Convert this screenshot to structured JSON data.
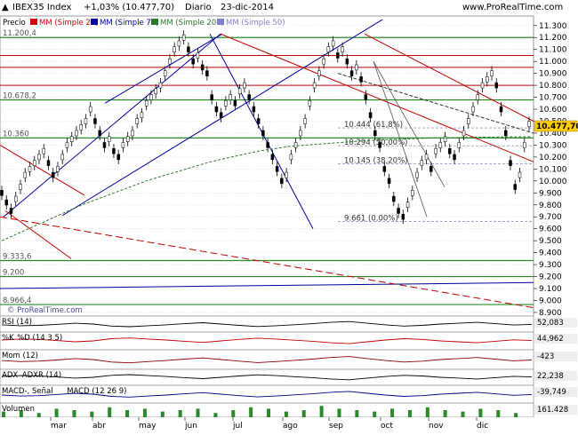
{
  "header": {
    "symbol": "IBEX35 Index",
    "change": "+1,03% (10.477,70)",
    "period": "Diario",
    "date": "23-dic-2014",
    "site": "www.ProRealTime.com"
  },
  "legend": {
    "price": "Precio",
    "sma20": "MM (Simple 20)",
    "sma70": "MM (Simple 70)",
    "sma200": "MM (Simple 200)",
    "sma50": "MM (Simple 50)"
  },
  "watermark": "© ProRealTime.com",
  "price_tag": "10.477,70",
  "indicators": {
    "rsi": {
      "label": "RSI (14)",
      "value": "52,083"
    },
    "stoch": {
      "label1": "%K",
      "label2": "%D (14 3 5)",
      "value": "44,962"
    },
    "mom": {
      "label": "Mom (12)",
      "value": "-423"
    },
    "adx": {
      "label1": "ADX",
      "label2": "ADXR (14)",
      "value": "22,238"
    },
    "macd": {
      "label1": "MACD-, Señal",
      "label2": "MACD (12 26 9)",
      "value": "-39,749"
    },
    "volume": {
      "label": "Volumen",
      "value": "161.428"
    }
  },
  "chart_data": {
    "type": "line",
    "title": "IBEX35 Index",
    "x_labels": [
      "mar",
      "abr",
      "may",
      "jun",
      "jul",
      "ago",
      "sep",
      "oct",
      "nov",
      "dic"
    ],
    "y_ticks": [
      8900,
      9000,
      9100,
      9200,
      9300,
      9400,
      9500,
      9600,
      9700,
      9800,
      9900,
      10000,
      10100,
      10200,
      10300,
      10400,
      10500,
      10600,
      10700,
      10800,
      10900,
      11000,
      11100,
      11200,
      11300
    ],
    "y_tick_labels": [
      "8.900",
      "9.000",
      "9.100",
      "9.200",
      "9.300",
      "9.400",
      "9.500",
      "9.600",
      "9.700",
      "9.800",
      "9.900",
      "10.000",
      "10.100",
      "10.200",
      "10.300",
      "10.400",
      "10.500",
      "10.600",
      "10.700",
      "10.800",
      "10.900",
      "11.000",
      "11.100",
      "11.200",
      "11.300"
    ],
    "ylim": [
      8870,
      11380
    ],
    "last_price": 10477.7,
    "close_series": [
      9900,
      9820,
      9750,
      9850,
      9950,
      10050,
      10100,
      10150,
      10200,
      10250,
      10150,
      10050,
      10100,
      10200,
      10300,
      10350,
      10400,
      10450,
      10500,
      10600,
      10500,
      10400,
      10300,
      10350,
      10250,
      10200,
      10300,
      10350,
      10400,
      10500,
      10550,
      10650,
      10700,
      10750,
      10800,
      10900,
      11000,
      11100,
      11150,
      11200,
      11100,
      11000,
      11050,
      10950,
      10900,
      10700,
      10600,
      10550,
      10650,
      10700,
      10650,
      10750,
      10800,
      10700,
      10600,
      10500,
      10400,
      10300,
      10200,
      10100,
      10000,
      10050,
      10200,
      10300,
      10400,
      10500,
      10650,
      10800,
      10900,
      11000,
      11100,
      11150,
      11050,
      11100,
      11000,
      10900,
      10950,
      10850,
      10700,
      10550,
      10400,
      10300,
      10100,
      10000,
      9850,
      9750,
      9700,
      9800,
      9900,
      10050,
      10150,
      10200,
      10100,
      10250,
      10300,
      10350,
      10250,
      10200,
      10300,
      10400,
      10500,
      10600,
      10700,
      10800,
      10850,
      10900,
      10800,
      10600,
      10400,
      10150,
      9950,
      10050,
      10300,
      10477.7
    ],
    "sma200_series": [
      9500,
      9560,
      9620,
      9680,
      9740,
      9800,
      9850,
      9900,
      9950,
      10000,
      10040,
      10080,
      10120,
      10160,
      10190,
      10220,
      10250,
      10270,
      10290,
      10300,
      10310,
      10320,
      10330,
      10340,
      10345,
      10350,
      10355,
      10360,
      10362,
      10364,
      10366,
      10368,
      10369,
      10370
    ],
    "horizontal_levels": [
      {
        "label": "11.200,4",
        "value": 11200
      },
      {
        "label": "10.678,2",
        "value": 10678
      },
      {
        "label": "10.360",
        "value": 10360
      },
      {
        "label": "9.333,6",
        "value": 9334
      },
      {
        "label": "9.200",
        "value": 9200
      },
      {
        "label": "8.966,4",
        "value": 8966
      }
    ],
    "fib_levels": [
      {
        "label": "10.444 (61,8%)",
        "value": 10444
      },
      {
        "label": "10.294 (50,00%)",
        "value": 10294
      },
      {
        "label": "10.145 (38,20%)",
        "value": 10145
      },
      {
        "label": "9.661 (0,00%)",
        "value": 9661
      }
    ],
    "rsi_series": [
      55,
      60,
      58,
      52,
      45,
      50,
      62,
      66,
      60,
      55,
      48,
      42,
      50,
      58,
      65,
      60,
      54,
      48,
      40,
      35,
      45,
      55,
      62,
      58,
      50,
      45,
      40,
      48,
      56,
      52
    ],
    "volume_series": [
      4,
      5,
      3,
      6,
      5,
      4,
      7,
      5,
      6,
      4,
      5,
      6,
      3,
      5,
      7,
      6,
      4,
      5,
      8,
      6,
      5,
      4,
      6,
      5,
      7,
      5,
      4,
      6,
      5,
      3
    ]
  }
}
